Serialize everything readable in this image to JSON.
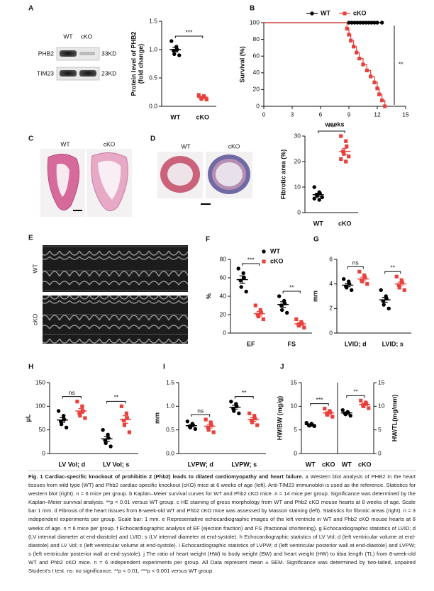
{
  "images": {
    "blot": {
      "panel": "A",
      "columns": [
        "WT",
        "cKO"
      ],
      "rows": [
        "PHB2",
        "TIM23"
      ],
      "sizes": [
        "33KD",
        "23KD"
      ]
    },
    "he": {
      "panel": "C",
      "labels": [
        "WT",
        "cKO"
      ]
    },
    "masson": {
      "panel": "D",
      "labels": [
        "WT",
        "cKO"
      ]
    },
    "echo": {
      "panel": "E",
      "labels": [
        "WT",
        "cKO"
      ]
    }
  },
  "chart_data": [
    {
      "type": "dot",
      "ylabel": [
        "Protein level of PHB2",
        "(fold change)"
      ],
      "categories": [
        "WT",
        "cKO"
      ],
      "ylim": [
        0,
        1.5
      ],
      "yticks": [
        {
          "value": 0,
          "label": "0.0"
        },
        0.5,
        {
          "value": 1,
          "label": "1.0"
        },
        1.5
      ],
      "series": [
        {
          "color": "#000000",
          "marker": "circle",
          "values": [
            [
              1.15,
              1.05,
              1.0,
              0.98,
              0.92,
              0.9
            ],
            null
          ],
          "mean": [
            1.0,
            null
          ],
          "sem": [
            0.04,
            null
          ]
        },
        {
          "color": "#e8413c",
          "marker": "square",
          "values": [
            null,
            [
              0.2,
              0.18,
              0.16,
              0.15,
              0.13,
              0.12
            ]
          ],
          "mean": [
            null,
            0.16
          ],
          "sem": [
            null,
            0.01
          ]
        }
      ],
      "significance": [
        {
          "text": "***",
          "categories": [
            0,
            1
          ]
        }
      ]
    },
    {
      "type": "line",
      "panel": "B",
      "ylabel": "Survival (%)",
      "xlabel": "weeks",
      "xlim": [
        0,
        15
      ],
      "xticks": [
        0,
        3,
        6,
        9,
        12,
        15
      ],
      "ylim": [
        0,
        100
      ],
      "yticks": [
        0,
        20,
        40,
        60,
        80,
        100
      ],
      "legend": "top-right",
      "series": [
        {
          "name": "WT",
          "color": "#000000",
          "marker": "circle",
          "x": [
            0,
            9,
            9.3,
            9.6,
            9.9,
            10.2,
            10.5,
            10.8,
            11.1,
            11.4,
            11.7,
            12,
            12.5
          ],
          "values": [
            100,
            100,
            100,
            100,
            100,
            100,
            100,
            100,
            100,
            100,
            100,
            100,
            100
          ]
        },
        {
          "name": "cKO",
          "color": "#e8413c",
          "marker": "square",
          "x": [
            0,
            8.8,
            9.0,
            9.2,
            9.5,
            9.8,
            10.1,
            10.5,
            10.9,
            11.3,
            11.7,
            12.0,
            12.2,
            12.5,
            12.8
          ],
          "values": [
            100,
            92.9,
            85.7,
            78.6,
            71.4,
            64.3,
            57.1,
            50,
            42.9,
            35.7,
            28.6,
            21.4,
            14.3,
            7.1,
            0
          ]
        }
      ],
      "significance": [
        {
          "text": "**"
        }
      ]
    },
    {
      "type": "dot",
      "ylabel": "Fibrotic area (%)",
      "categories": [
        "WT",
        "cKO"
      ],
      "ylim": [
        0,
        30
      ],
      "yticks": [
        0,
        10,
        20,
        30
      ],
      "series": [
        {
          "color": "#000000",
          "marker": "circle",
          "values": [
            [
              10,
              8,
              7.5,
              7,
              6.5,
              6,
              5.5,
              5
            ],
            null
          ],
          "mean": [
            7,
            null
          ],
          "sem": [
            0.6,
            null
          ]
        },
        {
          "color": "#e8413c",
          "marker": "square",
          "values": [
            null,
            [
              30,
              28,
              26,
              24,
              23,
              22,
              21,
              20
            ]
          ],
          "mean": [
            null,
            24
          ],
          "sem": [
            null,
            1.2
          ]
        }
      ],
      "significance": [
        {
          "text": "***",
          "categories": [
            0,
            1
          ]
        }
      ]
    },
    {
      "type": "dot",
      "panel": "F",
      "ylabel": "%",
      "categories": [
        "EF",
        "FS"
      ],
      "ylim": [
        0,
        80
      ],
      "yticks": [
        0,
        20,
        40,
        60,
        80
      ],
      "legend": "top-right",
      "series": [
        {
          "name": "WT",
          "color": "#000000",
          "marker": "circle",
          "values": [
            [
              70,
              65,
              60,
              57,
              50,
              45
            ],
            [
              40,
              35,
              32,
              30,
              25,
              22
            ]
          ],
          "mean": [
            58,
            31
          ],
          "sem": [
            4,
            3
          ]
        },
        {
          "name": "cKO",
          "color": "#e8413c",
          "marker": "square",
          "values": [
            [
              30,
              25,
              22,
              20,
              18,
              15
            ],
            [
              15,
              12,
              10,
              9,
              8,
              6
            ]
          ],
          "mean": [
            21,
            10
          ],
          "sem": [
            2.5,
            1.3
          ]
        }
      ],
      "significance": [
        {
          "text": "***",
          "categories": [
            0,
            0
          ]
        },
        {
          "text": "**",
          "categories": [
            1,
            1
          ]
        }
      ]
    },
    {
      "type": "dot",
      "panel": "G",
      "ylabel": "mm",
      "categories": [
        "LVID; d",
        "LVID; s"
      ],
      "ylim": [
        0,
        6
      ],
      "yticks": [
        0,
        2,
        4,
        6
      ],
      "series": [
        {
          "color": "#000000",
          "marker": "circle",
          "values": [
            [
              4.4,
              4.2,
              4.0,
              3.8,
              3.7,
              3.5
            ],
            [
              3.5,
              3.0,
              2.8,
              2.6,
              2.3,
              2.0
            ]
          ],
          "mean": [
            3.9,
            2.7
          ],
          "sem": [
            0.13,
            0.2
          ]
        },
        {
          "color": "#e8413c",
          "marker": "square",
          "values": [
            [
              5.0,
              4.7,
              4.5,
              4.3,
              4.2,
              4.0
            ],
            [
              4.6,
              4.3,
              4.1,
              3.9,
              3.7,
              3.5
            ]
          ],
          "mean": [
            4.4,
            4.0
          ],
          "sem": [
            0.15,
            0.15
          ]
        }
      ],
      "significance": [
        {
          "text": "ns",
          "categories": [
            0,
            0
          ]
        },
        {
          "text": "**",
          "categories": [
            1,
            1
          ]
        }
      ]
    },
    {
      "type": "dot",
      "panel": "H",
      "ylabel": "μL",
      "categories": [
        "LV Vol; d",
        "LV Vol; s"
      ],
      "ylim": [
        0,
        150
      ],
      "yticks": [
        0,
        50,
        100,
        150
      ],
      "series": [
        {
          "color": "#000000",
          "marker": "circle",
          "values": [
            [
              90,
              80,
              72,
              68,
              62,
              55
            ],
            [
              50,
              40,
              33,
              28,
              22,
              15
            ]
          ],
          "mean": [
            71,
            31
          ],
          "sem": [
            5,
            5
          ]
        },
        {
          "color": "#e8413c",
          "marker": "square",
          "values": [
            [
              110,
              100,
              90,
              85,
              80,
              75
            ],
            [
              100,
              85,
              75,
              70,
              60,
              45
            ]
          ],
          "mean": [
            90,
            72
          ],
          "sem": [
            5,
            8
          ]
        }
      ],
      "significance": [
        {
          "text": "ns",
          "categories": [
            0,
            0
          ]
        },
        {
          "text": "**",
          "categories": [
            1,
            1
          ]
        }
      ]
    },
    {
      "type": "dot",
      "panel": "I",
      "ylabel": "mm",
      "categories": [
        "LVPW; d",
        "LVPW; s"
      ],
      "ylim": [
        0,
        1.5
      ],
      "yticks": [
        {
          "value": 0,
          "label": "0.0"
        },
        0.5,
        {
          "value": 1,
          "label": "1.0"
        },
        1.5
      ],
      "series": [
        {
          "color": "#000000",
          "marker": "circle",
          "values": [
            [
              0.68,
              0.63,
              0.6,
              0.57,
              0.55,
              0.52
            ],
            [
              1.1,
              1.05,
              1.0,
              0.95,
              0.9,
              0.85
            ]
          ],
          "mean": [
            0.59,
            0.98
          ],
          "sem": [
            0.02,
            0.04
          ]
        },
        {
          "color": "#e8413c",
          "marker": "square",
          "values": [
            [
              0.72,
              0.66,
              0.6,
              0.55,
              0.5,
              0.45
            ],
            [
              0.85,
              0.8,
              0.74,
              0.7,
              0.66,
              0.6
            ]
          ],
          "mean": [
            0.58,
            0.72
          ],
          "sem": [
            0.04,
            0.04
          ]
        }
      ],
      "significance": [
        {
          "text": "ns",
          "categories": [
            0,
            0
          ]
        },
        {
          "text": "**",
          "categories": [
            1,
            1
          ]
        }
      ]
    },
    {
      "type": "dot",
      "panel": "J",
      "ylabel": "HW/BW (mg/g)",
      "y2label": "HW/TL(mg/mm)",
      "categories": [
        "WT",
        "cKO",
        "WT",
        "cKO"
      ],
      "ylim": [
        0,
        15
      ],
      "yticks": [
        0,
        5,
        10,
        15
      ],
      "y2lim": [
        0,
        15
      ],
      "y2ticks": [
        0,
        5,
        10,
        15
      ],
      "series": [
        {
          "color": "#000000",
          "marker": "circle",
          "values": [
            [
              6.5,
              6.3,
              6.1,
              6.0,
              5.9,
              5.8
            ],
            null,
            null,
            null
          ],
          "mean": [
            6.1,
            null,
            null,
            null
          ],
          "sem": [
            0.1,
            null,
            null,
            null
          ]
        },
        {
          "color": "#e8413c",
          "marker": "square",
          "values": [
            null,
            [
              9.5,
              9,
              8.7,
              8.4,
              8.2,
              7.8
            ],
            null,
            null
          ],
          "mean": [
            null,
            8.6,
            null,
            null
          ],
          "sem": [
            null,
            0.25,
            null,
            null
          ]
        },
        {
          "color": "#000000",
          "marker": "circle",
          "axis": "y2",
          "values": [
            null,
            null,
            [
              9.2,
              8.8,
              8.6,
              8.5,
              8.3,
              8.0
            ],
            null
          ],
          "mean": [
            null,
            null,
            8.6,
            null
          ],
          "sem": [
            null,
            null,
            0.17,
            null
          ]
        },
        {
          "color": "#e8413c",
          "marker": "square",
          "axis": "y2",
          "values": [
            null,
            null,
            null,
            [
              11.2,
              10.8,
              10.5,
              10.2,
              10.0,
              9.6
            ]
          ],
          "mean": [
            null,
            null,
            null,
            10.4
          ],
          "sem": [
            null,
            null,
            null,
            0.25
          ]
        }
      ],
      "significance": [
        {
          "text": "***",
          "categories": [
            0,
            1
          ]
        },
        {
          "text": "**",
          "categories": [
            2,
            3
          ]
        }
      ]
    }
  ],
  "caption": {
    "title": "Fig. 1 Cardiac-specific knockout of prohibitin 2 (Phb2) leads to dilated cardiomyopathy and heart failure.",
    "body": "a Western blot analysis of PHB2 in the heart tissues from wild type (WT) and Phb2 cardiac-specific knockout (cKO) mice at 6 weeks of age (left). Anti-TIM23 immunoblot is used as the reference. Statistics for western blot (right). n = 6 mice per group. b Kaplan–Meier survival curves for WT and Phb2 cKO mice. n = 14 mice per group. Significance was determined by the Kaplan–Meier survival analysis. **p < 0.01 versus WT group. c HE staining of gross morphology from WT and Phb2 cKO mouse hearts at 8 weeks of age. Scale bar 1 mm. d Fibrosis of the heart tissues from 8-week-old WT and Phb2 cKO mice was assessed by Masson staining (left). Statistics for fibrotic areas (right). n = 3 independent experiments per group. Scale bar: 1 mm. e Representative echocardiographic images of the left ventricle in WT and Phb2 cKO mouse hearts at 8 weeks of age. n = 6 mice per group. f Echocardiographic analysis of EF (ejection fraction) and FS (fractional shortening). g Echocardiographic statistics of LVID; d (LV internal diameter at end-diastole) and LVID; s (LV internal diameter at end-systole). h Echocardiographic statistics of LV Vol; d (left ventricular volume at end-diastole) and LV Vol; s (left ventricular volume at end-systole). i Echocardiographic statistics of LVPW; d (left ventricular posterior wall at end-diastole) and LVPW; s (left ventricular posterior wall at end-systole). j The ratio of heart weight (HW) to body weight (BW) and heart weight (HW) to tibia length (TL) from 8-week-old WT and Phb2 cKO mice. n = 6 independent experiments per group. All Data represent mean ± SEM. Significance was determined by two-tailed, unpaired Student's t test. ns: no significance. **p < 0.01, ***p < 0.001 versus WT group."
  }
}
